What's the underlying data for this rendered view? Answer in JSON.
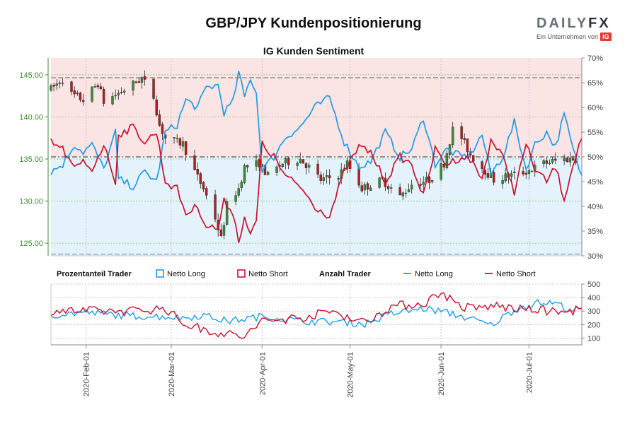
{
  "title": "GBP/JPY Kundenpositionierung",
  "subtitle": "IG Kunden Sentiment",
  "logo": {
    "main_a": "DAILY",
    "main_b": "FX",
    "sub": "Ein Unternehmen von",
    "badge": "IG"
  },
  "legend": {
    "group1": "Prozentanteil Trader",
    "group2": "Anzahl Trader",
    "net_long": "Netto Long",
    "net_short": "Netto Short"
  },
  "colors": {
    "long": "#1e9be6",
    "short": "#c8102e",
    "price_axis": "#3d8b2f",
    "long_zone": "#e4f3fb",
    "short_zone": "#fbe4e4",
    "candle_up": "#3c8c3c",
    "candle_down": "#b02020"
  },
  "chart_data": [
    {
      "type": "candlestick",
      "y_left": {
        "range": [
          123.5,
          147.0
        ],
        "ticks": [
          "145.00",
          "140.00",
          "135.00",
          "130.00",
          "125.00"
        ],
        "values": [
          145,
          140,
          135,
          130,
          125
        ]
      },
      "y_right": {
        "range": [
          30,
          70
        ],
        "ticks": [
          "70%",
          "65%",
          "60%",
          "55%",
          "50%",
          "45%",
          "40%",
          "35%",
          "30%"
        ],
        "values": [
          70,
          65,
          60,
          55,
          50,
          45,
          40,
          35,
          30
        ]
      },
      "reference_lines": {
        "upper_pct": 66,
        "mid_pct": 50,
        "lower_price": 123.7
      },
      "price_anchors": [
        [
          "2020-01-20",
          143.3
        ],
        [
          "2020-01-24",
          144.5
        ],
        [
          "2020-01-27",
          142.7
        ],
        [
          "2020-01-31",
          142.0
        ],
        [
          "2020-02-05",
          144.0
        ],
        [
          "2020-02-07",
          141.8
        ],
        [
          "2020-02-13",
          143.0
        ],
        [
          "2020-02-20",
          144.6
        ],
        [
          "2020-02-24",
          142.4
        ],
        [
          "2020-02-26",
          139.0
        ],
        [
          "2020-02-28",
          137.5
        ],
        [
          "2020-03-05",
          136.8
        ],
        [
          "2020-03-09",
          133.5
        ],
        [
          "2020-03-12",
          131.5
        ],
        [
          "2020-03-16",
          128.0
        ],
        [
          "2020-03-18",
          125.5
        ],
        [
          "2020-03-20",
          129.5
        ],
        [
          "2020-03-24",
          131.5
        ],
        [
          "2020-03-26",
          134.0
        ],
        [
          "2020-03-31",
          134.5
        ],
        [
          "2020-04-03",
          133.0
        ],
        [
          "2020-04-08",
          134.5
        ],
        [
          "2020-04-14",
          135.0
        ],
        [
          "2020-04-17",
          134.0
        ],
        [
          "2020-04-21",
          132.5
        ],
        [
          "2020-04-27",
          133.0
        ],
        [
          "2020-04-30",
          134.5
        ],
        [
          "2020-05-05",
          131.5
        ],
        [
          "2020-05-12",
          132.5
        ],
        [
          "2020-05-18",
          130.5
        ],
        [
          "2020-05-22",
          132.0
        ],
        [
          "2020-05-28",
          132.5
        ],
        [
          "2020-06-02",
          134.5
        ],
        [
          "2020-06-05",
          138.5
        ],
        [
          "2020-06-08",
          137.5
        ],
        [
          "2020-06-11",
          135.5
        ],
        [
          "2020-06-15",
          134.0
        ],
        [
          "2020-06-19",
          132.5
        ],
        [
          "2020-06-24",
          133.0
        ],
        [
          "2020-06-30",
          133.5
        ],
        [
          "2020-07-06",
          134.5
        ],
        [
          "2020-07-13",
          135.0
        ],
        [
          "2020-07-17",
          135.0
        ]
      ],
      "net_long_pct_anchors": [
        [
          "2020-01-20",
          47.0
        ],
        [
          "2020-01-24",
          48.5
        ],
        [
          "2020-01-28",
          52.5
        ],
        [
          "2020-01-31",
          51.0
        ],
        [
          "2020-02-03",
          52.5
        ],
        [
          "2020-02-07",
          47.5
        ],
        [
          "2020-02-11",
          55.0
        ],
        [
          "2020-02-12",
          45.5
        ],
        [
          "2020-02-17",
          44.0
        ],
        [
          "2020-02-21",
          47.0
        ],
        [
          "2020-02-25",
          45.0
        ],
        [
          "2020-02-28",
          55.0
        ],
        [
          "2020-03-03",
          56.5
        ],
        [
          "2020-03-06",
          61.5
        ],
        [
          "2020-03-10",
          60.0
        ],
        [
          "2020-03-13",
          64.0
        ],
        [
          "2020-03-17",
          64.5
        ],
        [
          "2020-03-19",
          59.0
        ],
        [
          "2020-03-22",
          61.0
        ],
        [
          "2020-03-24",
          67.0
        ],
        [
          "2020-03-26",
          62.0
        ],
        [
          "2020-03-28",
          66.0
        ],
        [
          "2020-03-30",
          63.0
        ],
        [
          "2020-04-01",
          47.5
        ],
        [
          "2020-04-05",
          50.0
        ],
        [
          "2020-04-09",
          54.0
        ],
        [
          "2020-04-14",
          56.0
        ],
        [
          "2020-04-19",
          60.0
        ],
        [
          "2020-04-24",
          62.0
        ],
        [
          "2020-04-29",
          53.0
        ],
        [
          "2020-05-04",
          48.0
        ],
        [
          "2020-05-08",
          49.0
        ],
        [
          "2020-05-13",
          55.0
        ],
        [
          "2020-05-18",
          50.0
        ],
        [
          "2020-05-22",
          51.5
        ],
        [
          "2020-05-26",
          58.0
        ],
        [
          "2020-05-30",
          48.5
        ],
        [
          "2020-06-03",
          51.5
        ],
        [
          "2020-06-08",
          50.0
        ],
        [
          "2020-06-11",
          50.5
        ],
        [
          "2020-06-15",
          54.5
        ],
        [
          "2020-06-18",
          46.5
        ],
        [
          "2020-06-22",
          50.0
        ],
        [
          "2020-06-26",
          57.0
        ],
        [
          "2020-06-30",
          47.5
        ],
        [
          "2020-07-03",
          52.5
        ],
        [
          "2020-07-07",
          55.0
        ],
        [
          "2020-07-10",
          52.0
        ],
        [
          "2020-07-13",
          58.5
        ],
        [
          "2020-07-16",
          51.5
        ],
        [
          "2020-07-19",
          46.0
        ]
      ],
      "start_date": "2020-01-20",
      "end_date": "2020-07-19"
    },
    {
      "type": "line",
      "y_right": {
        "range": [
          50,
          500
        ],
        "ticks": [
          "500",
          "400",
          "300",
          "200",
          "100"
        ],
        "values": [
          500,
          400,
          300,
          200,
          100
        ]
      },
      "x_ticks": [
        {
          "date": "2020-02-01",
          "label": "2020-Feb-01"
        },
        {
          "date": "2020-03-01",
          "label": "2020-Mar-01"
        },
        {
          "date": "2020-04-01",
          "label": "2020-Apr-01"
        },
        {
          "date": "2020-05-01",
          "label": "2020-May-01"
        },
        {
          "date": "2020-06-01",
          "label": "2020-Jun-01"
        },
        {
          "date": "2020-07-01",
          "label": "2020-Jul-01"
        }
      ],
      "net_long_count_anchors": [
        [
          "2020-01-20",
          270
        ],
        [
          "2020-02-01",
          290
        ],
        [
          "2020-02-15",
          265
        ],
        [
          "2020-02-28",
          260
        ],
        [
          "2020-03-05",
          250
        ],
        [
          "2020-03-12",
          270
        ],
        [
          "2020-03-20",
          225
        ],
        [
          "2020-04-01",
          260
        ],
        [
          "2020-04-15",
          225
        ],
        [
          "2020-04-28",
          220
        ],
        [
          "2020-05-06",
          205
        ],
        [
          "2020-05-15",
          280
        ],
        [
          "2020-05-26",
          320
        ],
        [
          "2020-06-03",
          290
        ],
        [
          "2020-06-10",
          250
        ],
        [
          "2020-06-18",
          195
        ],
        [
          "2020-06-26",
          310
        ],
        [
          "2020-07-03",
          360
        ],
        [
          "2020-07-10",
          360
        ],
        [
          "2020-07-16",
          300
        ],
        [
          "2020-07-19",
          310
        ]
      ],
      "net_short_count_anchors": [
        [
          "2020-01-20",
          305
        ],
        [
          "2020-02-01",
          300
        ],
        [
          "2020-02-15",
          300
        ],
        [
          "2020-02-28",
          320
        ],
        [
          "2020-03-05",
          210
        ],
        [
          "2020-03-12",
          165
        ],
        [
          "2020-03-20",
          130
        ],
        [
          "2020-03-26",
          110
        ],
        [
          "2020-04-01",
          225
        ],
        [
          "2020-04-15",
          255
        ],
        [
          "2020-04-25",
          300
        ],
        [
          "2020-05-06",
          215
        ],
        [
          "2020-05-15",
          335
        ],
        [
          "2020-05-26",
          355
        ],
        [
          "2020-06-01",
          440
        ],
        [
          "2020-06-08",
          330
        ],
        [
          "2020-06-13",
          320
        ],
        [
          "2020-06-20",
          340
        ],
        [
          "2020-06-28",
          310
        ],
        [
          "2020-07-05",
          310
        ],
        [
          "2020-07-12",
          285
        ],
        [
          "2020-07-19",
          320
        ]
      ]
    }
  ]
}
